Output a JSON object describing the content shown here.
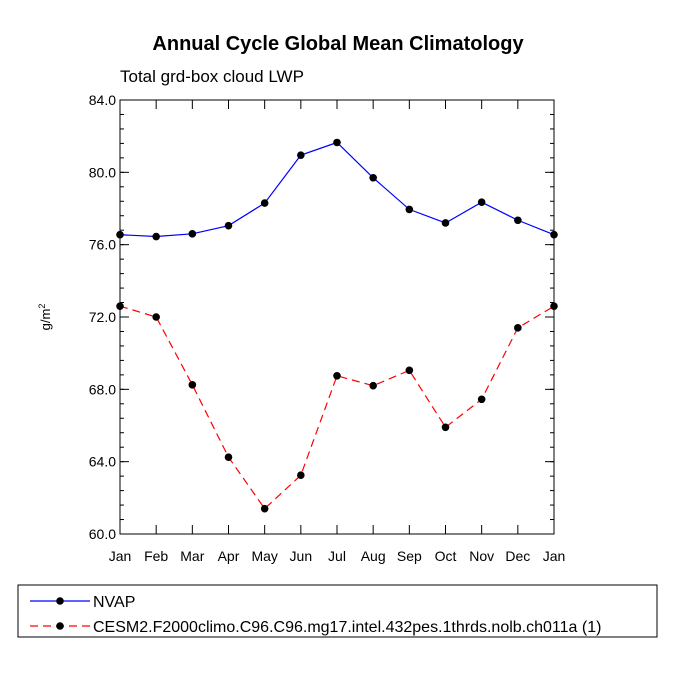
{
  "chart_data": {
    "type": "line",
    "title": "Annual Cycle Global Mean Climatology",
    "subtitle": "Total grd-box cloud LWP",
    "ylabel": "g/m",
    "ylabel_sup": "2",
    "xlabel": "",
    "categories": [
      "Jan",
      "Feb",
      "Mar",
      "Apr",
      "May",
      "Jun",
      "Jul",
      "Aug",
      "Sep",
      "Oct",
      "Nov",
      "Dec",
      "Jan"
    ],
    "ylim": [
      60.0,
      84.0
    ],
    "yticks": [
      "60.0",
      "64.0",
      "68.0",
      "72.0",
      "76.0",
      "80.0",
      "84.0"
    ],
    "series": [
      {
        "name": "NVAP",
        "color": "#0000ff",
        "dash": "solid",
        "values": [
          76.55,
          76.45,
          76.6,
          77.05,
          78.3,
          80.95,
          81.65,
          79.7,
          77.95,
          77.2,
          78.35,
          77.35,
          76.55
        ]
      },
      {
        "name": "CESM2.F2000climo.C96.C96.mg17.intel.432pes.1thrds.nolb.ch011a (1)",
        "color": "#ff0000",
        "dash": "dashed",
        "values": [
          72.6,
          72.0,
          68.25,
          64.25,
          61.4,
          63.25,
          68.75,
          68.2,
          69.05,
          65.9,
          67.45,
          71.4,
          72.6
        ]
      }
    ]
  }
}
